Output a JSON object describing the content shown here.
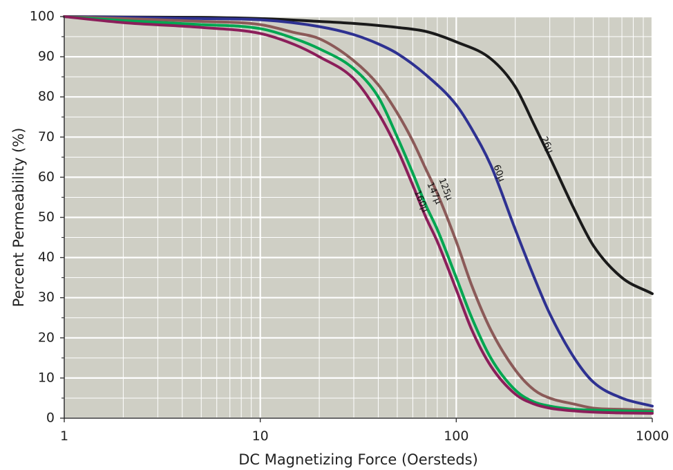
{
  "chart_data": {
    "type": "line",
    "xlabel": "DC Magnetizing Force (Oersteds)",
    "ylabel": "Percent Permeability (%)",
    "x_scale": "log",
    "xlim": [
      1,
      1000
    ],
    "ylim": [
      0,
      100
    ],
    "x_ticks": [
      1,
      10,
      100,
      1000
    ],
    "x_tick_labels": [
      "1",
      "10",
      "100",
      "1000"
    ],
    "y_ticks": [
      0,
      10,
      20,
      30,
      40,
      50,
      60,
      70,
      80,
      90,
      100
    ],
    "y_tick_labels": [
      "0",
      "10",
      "20",
      "30",
      "40",
      "50",
      "60",
      "70",
      "80",
      "90",
      "100"
    ],
    "grid": true,
    "legend": "none",
    "background_color": "#cfcfc5",
    "series": [
      {
        "name": "26μ",
        "color": "#1a1a1a",
        "x": [
          1,
          2,
          5,
          10,
          20,
          30,
          50,
          70,
          100,
          150,
          200,
          250,
          300,
          400,
          500,
          700,
          1000
        ],
        "y": [
          100,
          99.9,
          99.8,
          99.5,
          98.8,
          98.3,
          97.3,
          96.3,
          93.7,
          89.5,
          82.5,
          73,
          65,
          52,
          43,
          35,
          31
        ],
        "label_at": {
          "x": 290,
          "y": 68
        }
      },
      {
        "name": "60μ",
        "color": "#2e3191",
        "x": [
          1,
          2,
          5,
          10,
          20,
          30,
          40,
          50,
          70,
          100,
          120,
          150,
          200,
          250,
          300,
          400,
          500,
          700,
          1000
        ],
        "y": [
          100,
          99.8,
          99.5,
          99.2,
          97.5,
          95.5,
          93.2,
          90.8,
          85.5,
          78,
          72,
          63,
          47,
          35,
          26,
          15,
          9,
          5,
          3
        ],
        "label_at": {
          "x": 165,
          "y": 61
        }
      },
      {
        "name": "125μ",
        "color": "#8b5a58",
        "x": [
          1,
          2,
          5,
          10,
          15,
          20,
          30,
          40,
          50,
          60,
          70,
          80,
          100,
          120,
          150,
          200,
          250,
          300,
          400,
          500,
          700,
          1000
        ],
        "y": [
          100,
          99.5,
          98.8,
          98,
          96,
          94.5,
          89,
          83,
          76,
          69,
          62,
          56,
          44,
          33,
          22,
          12,
          7,
          5,
          3.5,
          2.5,
          2.2,
          2
        ],
        "label_at": {
          "x": 88,
          "y": 57
        }
      },
      {
        "name": "147μ",
        "color": "#00a651",
        "x": [
          1,
          2,
          5,
          10,
          15,
          20,
          30,
          40,
          50,
          60,
          70,
          80,
          100,
          120,
          150,
          200,
          250,
          300,
          400,
          500,
          700,
          1000
        ],
        "y": [
          100,
          99,
          98,
          97,
          94.5,
          92,
          87,
          80,
          70,
          61,
          53,
          47,
          35,
          25,
          15,
          7,
          4,
          3,
          2.2,
          2,
          1.8,
          1.6
        ],
        "label_at": {
          "x": 77,
          "y": 56
        }
      },
      {
        "name": "160μ",
        "color": "#8b1e5a",
        "x": [
          1,
          2,
          5,
          10,
          15,
          20,
          30,
          40,
          50,
          60,
          70,
          80,
          100,
          120,
          150,
          200,
          250,
          300,
          400,
          500,
          700,
          1000
        ],
        "y": [
          100,
          98.5,
          97.3,
          95.8,
          93,
          90,
          84.5,
          76,
          67,
          58,
          50,
          44,
          32,
          22,
          13,
          6,
          3.5,
          2.5,
          1.8,
          1.5,
          1.3,
          1.2
        ],
        "label_at": {
          "x": 66,
          "y": 54
        }
      }
    ]
  }
}
